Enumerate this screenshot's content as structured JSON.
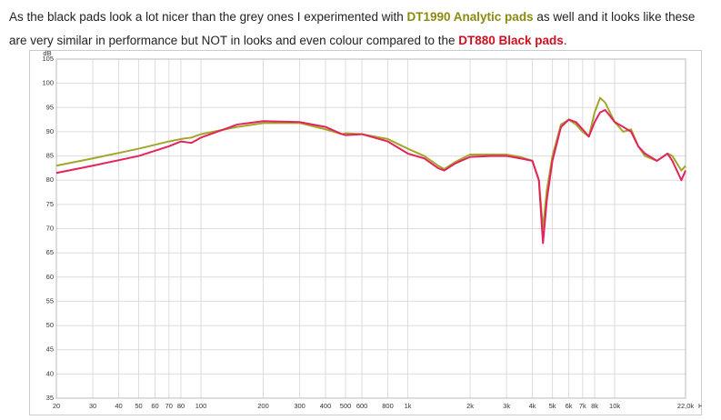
{
  "post_text": [
    "As the black pads look a lot nicer than the grey ones I experimented with",
    "as well and it looks like these",
    "are very similar in performance but NOT in looks and even colour compared to the",
    "."
  ],
  "chart_data": {
    "type": "line",
    "y_label": "dB",
    "x_unit": "Hz",
    "log_x": true,
    "grid": true,
    "x": [
      20,
      30,
      50,
      70,
      80,
      90,
      100,
      150,
      200,
      300,
      400,
      480,
      500,
      600,
      800,
      1000,
      1200,
      1400,
      1500,
      1700,
      2000,
      2500,
      3000,
      3500,
      4000,
      4300,
      4500,
      4700,
      5000,
      5500,
      6000,
      6500,
      7000,
      7500,
      8000,
      8500,
      9000,
      10000,
      11000,
      12000,
      13000,
      14000,
      16000,
      18000,
      19000,
      21000,
      22000
    ],
    "series": [
      {
        "name": "DT1990 Analytic pads",
        "color": "#a3a62a",
        "values": [
          83,
          84.5,
          86.5,
          88,
          88.5,
          88.8,
          89.5,
          91,
          91.8,
          91.8,
          90.5,
          89.5,
          89.7,
          89.5,
          88.5,
          86.5,
          85,
          83,
          82.3,
          83.8,
          85.3,
          85.3,
          85.3,
          84.8,
          84,
          80,
          70,
          78,
          85,
          91.5,
          92.5,
          91.5,
          90,
          89,
          94,
          97,
          96,
          92,
          90,
          90.5,
          87,
          85,
          84,
          85.5,
          85,
          82,
          83
        ]
      },
      {
        "name": "DT880 Black pads",
        "color": "#e3245c",
        "values": [
          81.5,
          83,
          85,
          87,
          88,
          87.7,
          88.8,
          91.5,
          92.2,
          92,
          91,
          89.5,
          89.3,
          89.5,
          88,
          85.5,
          84.5,
          82.5,
          82,
          83.5,
          84.8,
          85,
          85,
          84.5,
          84,
          80,
          67,
          76,
          84,
          91,
          92.5,
          92,
          90.5,
          89,
          92,
          94,
          94.5,
          92,
          91,
          90,
          87,
          85.5,
          84,
          85.5,
          84,
          80,
          82
        ]
      }
    ],
    "xlim": [
      20,
      22000
    ],
    "ylim": [
      35,
      105
    ],
    "xticks": [
      20,
      30,
      40,
      50,
      60,
      70,
      80,
      100,
      200,
      300,
      400,
      500,
      600,
      800,
      {
        "value": 1000,
        "label": "1k"
      },
      {
        "value": 2000,
        "label": "2k"
      },
      {
        "value": 3000,
        "label": "3k"
      },
      {
        "value": 4000,
        "label": "4k"
      },
      {
        "value": 5000,
        "label": "5k"
      },
      {
        "value": 6000,
        "label": "6k"
      },
      {
        "value": 7000,
        "label": "7k"
      },
      {
        "value": 8000,
        "label": "8k"
      },
      {
        "value": 10000,
        "label": "10k"
      },
      {
        "value": 22000,
        "label": "22,0k"
      }
    ],
    "yticks": [
      35,
      40,
      45,
      50,
      55,
      60,
      65,
      70,
      75,
      80,
      85,
      90,
      95,
      100,
      105
    ]
  }
}
